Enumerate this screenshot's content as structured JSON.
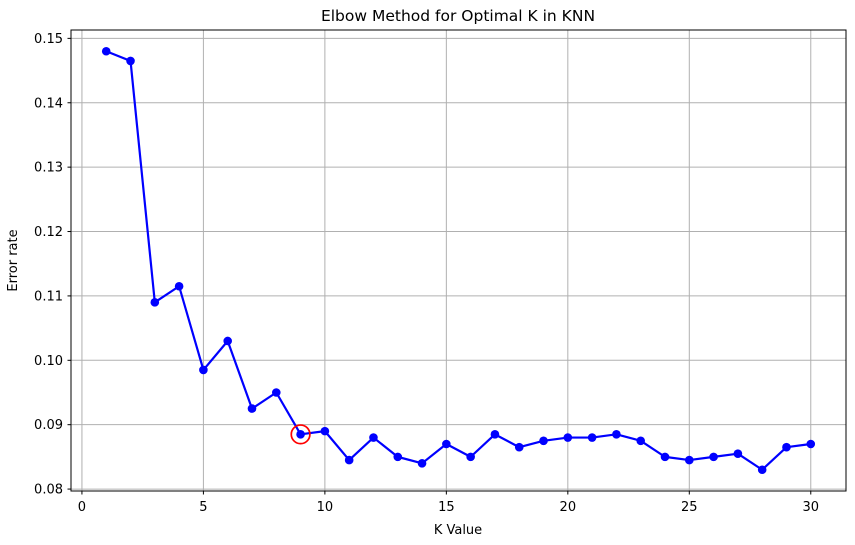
{
  "figure": {
    "background": "#ffffff"
  },
  "chart_data": {
    "type": "line",
    "title": "Elbow Method for Optimal K in KNN",
    "xlabel": "K Value",
    "ylabel": "Error rate",
    "x": [
      1,
      2,
      3,
      4,
      5,
      6,
      7,
      8,
      9,
      10,
      11,
      12,
      13,
      14,
      15,
      16,
      17,
      18,
      19,
      20,
      21,
      22,
      23,
      24,
      25,
      26,
      27,
      28,
      29,
      30
    ],
    "y": [
      0.148,
      0.1465,
      0.109,
      0.1115,
      0.0985,
      0.103,
      0.0925,
      0.095,
      0.0885,
      0.089,
      0.0845,
      0.088,
      0.085,
      0.084,
      0.087,
      0.085,
      0.0885,
      0.0865,
      0.0875,
      0.088,
      0.088,
      0.0885,
      0.0875,
      0.085,
      0.0845,
      0.085,
      0.0855,
      0.083,
      0.0865,
      0.087
    ],
    "xlim": [
      -0.45,
      31.45
    ],
    "ylim": [
      0.0797,
      0.1513
    ],
    "xticks": [
      0,
      5,
      10,
      15,
      20,
      25,
      30
    ],
    "xtick_labels": [
      "0",
      "5",
      "10",
      "15",
      "20",
      "25",
      "30"
    ],
    "yticks": [
      0.08,
      0.09,
      0.1,
      0.11,
      0.12,
      0.13,
      0.14,
      0.15
    ],
    "ytick_labels": [
      "0.08",
      "0.09",
      "0.10",
      "0.11",
      "0.12",
      "0.13",
      "0.14",
      "0.15"
    ],
    "grid": true,
    "grid_color": "#b0b0b0",
    "spine_color": "#000000",
    "line_color": "#0000ff",
    "marker_color": "#0000ff",
    "highlight": {
      "x": 9,
      "y": 0.0885,
      "color": "#ff0000"
    }
  }
}
